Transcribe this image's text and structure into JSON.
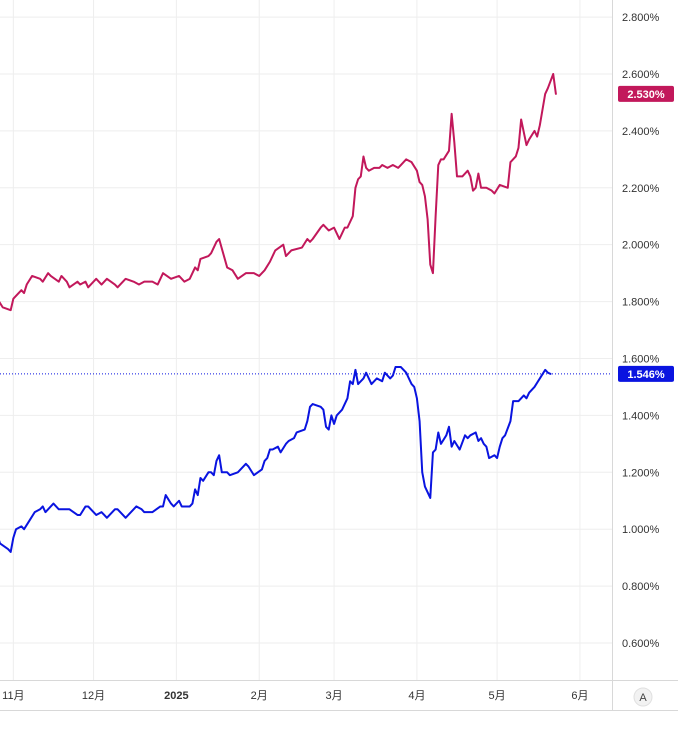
{
  "chart_data": {
    "type": "line",
    "x_labels": [
      {
        "label": "11月",
        "date": "2024-11-01",
        "bold": false
      },
      {
        "label": "12月",
        "date": "2024-12-01",
        "bold": false
      },
      {
        "label": "2025",
        "date": "2025-01-01",
        "bold": true
      },
      {
        "label": "2月",
        "date": "2025-02-01",
        "bold": false
      },
      {
        "label": "3月",
        "date": "2025-03-01",
        "bold": false
      },
      {
        "label": "4月",
        "date": "2025-04-01",
        "bold": false
      },
      {
        "label": "5月",
        "date": "2025-05-01",
        "bold": false
      },
      {
        "label": "6月",
        "date": "2025-06-01",
        "bold": false
      }
    ],
    "y_ticks": [
      0.6,
      0.8,
      1.0,
      1.2,
      1.4,
      1.6,
      1.8,
      2.0,
      2.2,
      2.4,
      2.6,
      2.8
    ],
    "y_tick_labels": [
      "0.600%",
      "0.800%",
      "1.000%",
      "1.200%",
      "1.400%",
      "1.600%",
      "1.800%",
      "2.000%",
      "2.200%",
      "2.400%",
      "2.600%",
      "2.800%"
    ],
    "ylim": [
      0.47,
      2.86
    ],
    "xlim": [
      "2024-10-27",
      "2025-06-13"
    ],
    "grid": true,
    "series": [
      {
        "color": "#c2185b",
        "last_value_label": "2.530%",
        "points": [
          [
            "2024-10-26",
            1.81
          ],
          [
            "2024-10-28",
            1.78
          ],
          [
            "2024-10-31",
            1.77
          ],
          [
            "2024-11-01",
            1.81
          ],
          [
            "2024-11-04",
            1.84
          ],
          [
            "2024-11-05",
            1.83
          ],
          [
            "2024-11-06",
            1.86
          ],
          [
            "2024-11-08",
            1.89
          ],
          [
            "2024-11-11",
            1.88
          ],
          [
            "2024-11-12",
            1.87
          ],
          [
            "2024-11-14",
            1.9
          ],
          [
            "2024-11-15",
            1.89
          ],
          [
            "2024-11-18",
            1.87
          ],
          [
            "2024-11-19",
            1.89
          ],
          [
            "2024-11-21",
            1.87
          ],
          [
            "2024-11-22",
            1.85
          ],
          [
            "2024-11-25",
            1.87
          ],
          [
            "2024-11-26",
            1.86
          ],
          [
            "2024-11-28",
            1.87
          ],
          [
            "2024-11-29",
            1.85
          ],
          [
            "2024-12-02",
            1.88
          ],
          [
            "2024-12-04",
            1.86
          ],
          [
            "2024-12-06",
            1.88
          ],
          [
            "2024-12-09",
            1.86
          ],
          [
            "2024-12-10",
            1.85
          ],
          [
            "2024-12-13",
            1.88
          ],
          [
            "2024-12-16",
            1.87
          ],
          [
            "2024-12-18",
            1.86
          ],
          [
            "2024-12-20",
            1.87
          ],
          [
            "2024-12-23",
            1.87
          ],
          [
            "2024-12-25",
            1.86
          ],
          [
            "2024-12-27",
            1.9
          ],
          [
            "2024-12-30",
            1.88
          ],
          [
            "2025-01-02",
            1.89
          ],
          [
            "2025-01-04",
            1.87
          ],
          [
            "2025-01-06",
            1.88
          ],
          [
            "2025-01-08",
            1.92
          ],
          [
            "2025-01-09",
            1.91
          ],
          [
            "2025-01-10",
            1.95
          ],
          [
            "2025-01-13",
            1.96
          ],
          [
            "2025-01-14",
            1.97
          ],
          [
            "2025-01-16",
            2.01
          ],
          [
            "2025-01-17",
            2.02
          ],
          [
            "2025-01-20",
            1.92
          ],
          [
            "2025-01-22",
            1.91
          ],
          [
            "2025-01-24",
            1.88
          ],
          [
            "2025-01-27",
            1.9
          ],
          [
            "2025-01-30",
            1.9
          ],
          [
            "2025-02-01",
            1.89
          ],
          [
            "2025-02-03",
            1.91
          ],
          [
            "2025-02-05",
            1.94
          ],
          [
            "2025-02-07",
            1.98
          ],
          [
            "2025-02-10",
            2.0
          ],
          [
            "2025-02-11",
            1.96
          ],
          [
            "2025-02-13",
            1.98
          ],
          [
            "2025-02-17",
            1.99
          ],
          [
            "2025-02-19",
            2.02
          ],
          [
            "2025-02-20",
            2.01
          ],
          [
            "2025-02-21",
            2.02
          ],
          [
            "2025-02-24",
            2.06
          ],
          [
            "2025-02-25",
            2.07
          ],
          [
            "2025-02-27",
            2.05
          ],
          [
            "2025-03-01",
            2.06
          ],
          [
            "2025-03-02",
            2.04
          ],
          [
            "2025-03-03",
            2.02
          ],
          [
            "2025-03-04",
            2.04
          ],
          [
            "2025-03-05",
            2.06
          ],
          [
            "2025-03-06",
            2.06
          ],
          [
            "2025-03-08",
            2.1
          ],
          [
            "2025-03-09",
            2.2
          ],
          [
            "2025-03-10",
            2.23
          ],
          [
            "2025-03-11",
            2.24
          ],
          [
            "2025-03-12",
            2.31
          ],
          [
            "2025-03-13",
            2.27
          ],
          [
            "2025-03-14",
            2.26
          ],
          [
            "2025-03-16",
            2.27
          ],
          [
            "2025-03-18",
            2.27
          ],
          [
            "2025-03-19",
            2.28
          ],
          [
            "2025-03-21",
            2.27
          ],
          [
            "2025-03-23",
            2.28
          ],
          [
            "2025-03-25",
            2.27
          ],
          [
            "2025-03-26",
            2.28
          ],
          [
            "2025-03-28",
            2.3
          ],
          [
            "2025-03-30",
            2.29
          ],
          [
            "2025-04-01",
            2.26
          ],
          [
            "2025-04-02",
            2.22
          ],
          [
            "2025-04-03",
            2.21
          ],
          [
            "2025-04-04",
            2.17
          ],
          [
            "2025-04-05",
            2.09
          ],
          [
            "2025-04-06",
            1.93
          ],
          [
            "2025-04-07",
            1.9
          ],
          [
            "2025-04-08",
            2.1
          ],
          [
            "2025-04-09",
            2.28
          ],
          [
            "2025-04-10",
            2.3
          ],
          [
            "2025-04-11",
            2.3
          ],
          [
            "2025-04-13",
            2.33
          ],
          [
            "2025-04-14",
            2.46
          ],
          [
            "2025-04-15",
            2.36
          ],
          [
            "2025-04-16",
            2.24
          ],
          [
            "2025-04-18",
            2.24
          ],
          [
            "2025-04-20",
            2.26
          ],
          [
            "2025-04-21",
            2.24
          ],
          [
            "2025-04-22",
            2.19
          ],
          [
            "2025-04-23",
            2.2
          ],
          [
            "2025-04-24",
            2.25
          ],
          [
            "2025-04-25",
            2.2
          ],
          [
            "2025-04-27",
            2.2
          ],
          [
            "2025-04-29",
            2.19
          ],
          [
            "2025-04-30",
            2.18
          ],
          [
            "2025-05-02",
            2.21
          ],
          [
            "2025-05-05",
            2.2
          ],
          [
            "2025-05-06",
            2.29
          ],
          [
            "2025-05-08",
            2.31
          ],
          [
            "2025-05-09",
            2.34
          ],
          [
            "2025-05-10",
            2.44
          ],
          [
            "2025-05-12",
            2.35
          ],
          [
            "2025-05-13",
            2.37
          ],
          [
            "2025-05-15",
            2.4
          ],
          [
            "2025-05-16",
            2.38
          ],
          [
            "2025-05-17",
            2.42
          ],
          [
            "2025-05-19",
            2.53
          ],
          [
            "2025-05-20",
            2.55
          ],
          [
            "2025-05-22",
            2.6
          ],
          [
            "2025-05-23",
            2.53
          ]
        ]
      },
      {
        "color": "#0a14e0",
        "last_value_label": "1.546%",
        "points": [
          [
            "2024-10-26",
            0.98
          ],
          [
            "2024-10-27",
            0.95
          ],
          [
            "2024-10-30",
            0.93
          ],
          [
            "2024-10-31",
            0.92
          ],
          [
            "2024-11-01",
            0.97
          ],
          [
            "2024-11-02",
            1.0
          ],
          [
            "2024-11-04",
            1.01
          ],
          [
            "2024-11-05",
            1.0
          ],
          [
            "2024-11-07",
            1.03
          ],
          [
            "2024-11-09",
            1.06
          ],
          [
            "2024-11-11",
            1.07
          ],
          [
            "2024-11-12",
            1.08
          ],
          [
            "2024-11-13",
            1.06
          ],
          [
            "2024-11-14",
            1.07
          ],
          [
            "2024-11-16",
            1.09
          ],
          [
            "2024-11-18",
            1.07
          ],
          [
            "2024-11-20",
            1.07
          ],
          [
            "2024-11-22",
            1.07
          ],
          [
            "2024-11-25",
            1.05
          ],
          [
            "2024-11-26",
            1.05
          ],
          [
            "2024-11-28",
            1.08
          ],
          [
            "2024-11-29",
            1.08
          ],
          [
            "2024-12-02",
            1.05
          ],
          [
            "2024-12-04",
            1.06
          ],
          [
            "2024-12-05",
            1.05
          ],
          [
            "2024-12-06",
            1.04
          ],
          [
            "2024-12-09",
            1.07
          ],
          [
            "2024-12-10",
            1.07
          ],
          [
            "2024-12-12",
            1.05
          ],
          [
            "2024-12-13",
            1.04
          ],
          [
            "2024-12-16",
            1.07
          ],
          [
            "2024-12-17",
            1.08
          ],
          [
            "2024-12-19",
            1.07
          ],
          [
            "2024-12-20",
            1.06
          ],
          [
            "2024-12-23",
            1.06
          ],
          [
            "2024-12-26",
            1.08
          ],
          [
            "2024-12-27",
            1.08
          ],
          [
            "2024-12-28",
            1.12
          ],
          [
            "2024-12-30",
            1.09
          ],
          [
            "2024-12-31",
            1.08
          ],
          [
            "2025-01-02",
            1.1
          ],
          [
            "2025-01-03",
            1.08
          ],
          [
            "2025-01-06",
            1.08
          ],
          [
            "2025-01-07",
            1.09
          ],
          [
            "2025-01-08",
            1.14
          ],
          [
            "2025-01-09",
            1.12
          ],
          [
            "2025-01-10",
            1.18
          ],
          [
            "2025-01-11",
            1.17
          ],
          [
            "2025-01-13",
            1.2
          ],
          [
            "2025-01-14",
            1.2
          ],
          [
            "2025-01-15",
            1.19
          ],
          [
            "2025-01-16",
            1.24
          ],
          [
            "2025-01-17",
            1.26
          ],
          [
            "2025-01-18",
            1.2
          ],
          [
            "2025-01-20",
            1.2
          ],
          [
            "2025-01-21",
            1.19
          ],
          [
            "2025-01-24",
            1.2
          ],
          [
            "2025-01-27",
            1.23
          ],
          [
            "2025-01-28",
            1.22
          ],
          [
            "2025-01-30",
            1.19
          ],
          [
            "2025-02-02",
            1.21
          ],
          [
            "2025-02-03",
            1.24
          ],
          [
            "2025-02-04",
            1.25
          ],
          [
            "2025-02-05",
            1.28
          ],
          [
            "2025-02-06",
            1.28
          ],
          [
            "2025-02-08",
            1.29
          ],
          [
            "2025-02-09",
            1.27
          ],
          [
            "2025-02-11",
            1.3
          ],
          [
            "2025-02-12",
            1.31
          ],
          [
            "2025-02-14",
            1.32
          ],
          [
            "2025-02-15",
            1.34
          ],
          [
            "2025-02-18",
            1.35
          ],
          [
            "2025-02-19",
            1.38
          ],
          [
            "2025-02-20",
            1.43
          ],
          [
            "2025-02-21",
            1.44
          ],
          [
            "2025-02-24",
            1.43
          ],
          [
            "2025-02-25",
            1.42
          ],
          [
            "2025-02-26",
            1.36
          ],
          [
            "2025-02-27",
            1.35
          ],
          [
            "2025-02-28",
            1.4
          ],
          [
            "2025-03-01",
            1.37
          ],
          [
            "2025-03-02",
            1.4
          ],
          [
            "2025-03-03",
            1.41
          ],
          [
            "2025-03-04",
            1.42
          ],
          [
            "2025-03-06",
            1.46
          ],
          [
            "2025-03-07",
            1.52
          ],
          [
            "2025-03-08",
            1.51
          ],
          [
            "2025-03-09",
            1.56
          ],
          [
            "2025-03-10",
            1.51
          ],
          [
            "2025-03-12",
            1.53
          ],
          [
            "2025-03-13",
            1.55
          ],
          [
            "2025-03-15",
            1.51
          ],
          [
            "2025-03-17",
            1.53
          ],
          [
            "2025-03-19",
            1.52
          ],
          [
            "2025-03-20",
            1.55
          ],
          [
            "2025-03-22",
            1.53
          ],
          [
            "2025-03-23",
            1.54
          ],
          [
            "2025-03-24",
            1.57
          ],
          [
            "2025-03-26",
            1.57
          ],
          [
            "2025-03-28",
            1.55
          ],
          [
            "2025-03-29",
            1.53
          ],
          [
            "2025-03-30",
            1.51
          ],
          [
            "2025-03-31",
            1.5
          ],
          [
            "2025-04-01",
            1.46
          ],
          [
            "2025-04-02",
            1.38
          ],
          [
            "2025-04-03",
            1.2
          ],
          [
            "2025-04-04",
            1.15
          ],
          [
            "2025-04-06",
            1.11
          ],
          [
            "2025-04-07",
            1.27
          ],
          [
            "2025-04-08",
            1.28
          ],
          [
            "2025-04-09",
            1.34
          ],
          [
            "2025-04-10",
            1.3
          ],
          [
            "2025-04-12",
            1.33
          ],
          [
            "2025-04-13",
            1.36
          ],
          [
            "2025-04-14",
            1.29
          ],
          [
            "2025-04-15",
            1.31
          ],
          [
            "2025-04-17",
            1.28
          ],
          [
            "2025-04-19",
            1.33
          ],
          [
            "2025-04-20",
            1.32
          ],
          [
            "2025-04-21",
            1.33
          ],
          [
            "2025-04-23",
            1.34
          ],
          [
            "2025-04-24",
            1.31
          ],
          [
            "2025-04-25",
            1.32
          ],
          [
            "2025-04-26",
            1.3
          ],
          [
            "2025-04-27",
            1.29
          ],
          [
            "2025-04-28",
            1.25
          ],
          [
            "2025-04-30",
            1.26
          ],
          [
            "2025-05-01",
            1.25
          ],
          [
            "2025-05-02",
            1.29
          ],
          [
            "2025-05-03",
            1.32
          ],
          [
            "2025-05-04",
            1.33
          ],
          [
            "2025-05-06",
            1.38
          ],
          [
            "2025-05-07",
            1.45
          ],
          [
            "2025-05-09",
            1.45
          ],
          [
            "2025-05-11",
            1.47
          ],
          [
            "2025-05-12",
            1.46
          ],
          [
            "2025-05-13",
            1.48
          ],
          [
            "2025-05-15",
            1.5
          ],
          [
            "2025-05-17",
            1.53
          ],
          [
            "2025-05-19",
            1.56
          ],
          [
            "2025-05-20",
            1.55
          ],
          [
            "2025-05-21",
            1.546
          ]
        ]
      }
    ],
    "price_line_value": 1.546
  },
  "axis_footer": {
    "auto_scale_label": "A"
  },
  "colors": {
    "grid": "#eeeeee",
    "axis_text": "#333333",
    "border": "#d8d8d8",
    "dotted_line": "#0a14e0"
  }
}
